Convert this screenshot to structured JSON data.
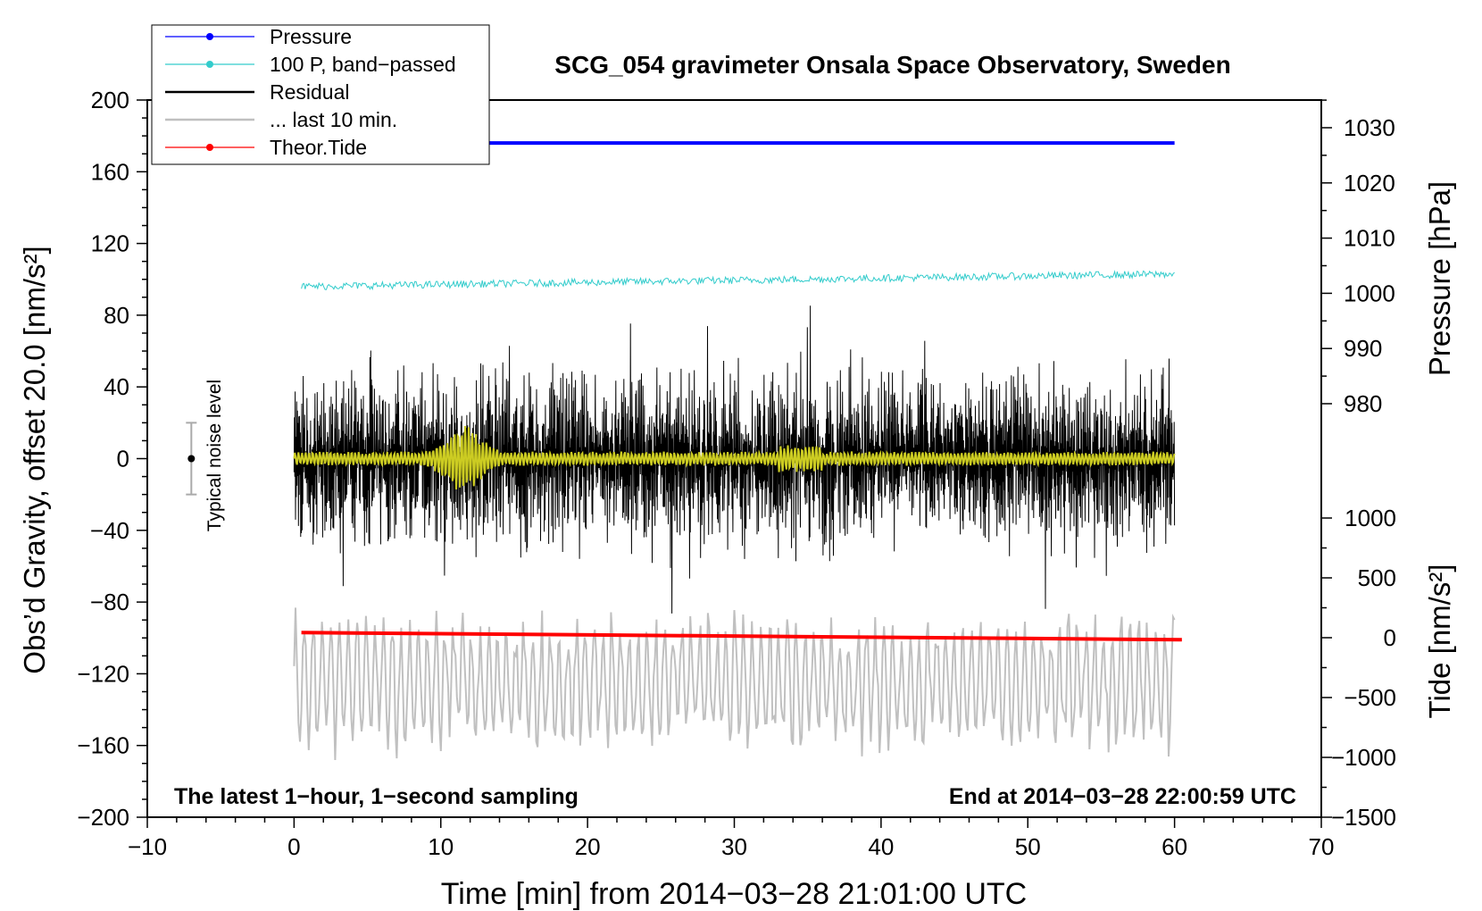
{
  "chart_data": {
    "type": "line",
    "title": "SCG_054 gravimeter Onsala Space Observatory, Sweden",
    "xlabel": "Time [min] from 2014−03−28 21:01:00 UTC",
    "ylabel_left": "Obs’d Gravity, offset 20.0 [nm/s²]",
    "ylabel_right_pressure": "Pressure [hPa]",
    "ylabel_right_tide": "Tide [nm/s²]",
    "xlim": [
      -10,
      70
    ],
    "ylim": [
      -200,
      200
    ],
    "x_ticks": [
      "−10",
      "0",
      "10",
      "20",
      "30",
      "40",
      "50",
      "60",
      "70"
    ],
    "y_ticks": [
      "200",
      "160",
      "120",
      "80",
      "40",
      "0",
      "−40",
      "−80",
      "−120",
      "−160",
      "−200"
    ],
    "pressure_axis": {
      "ticks": [
        "1030",
        "1020",
        "1010",
        "1000",
        "990",
        "980"
      ],
      "values": [
        1030,
        1020,
        1010,
        1000,
        990,
        980
      ]
    },
    "tide_axis": {
      "ticks": [
        "1000",
        "500",
        "0",
        "−500",
        "−1000",
        "−1500"
      ],
      "values": [
        1000,
        500,
        0,
        -500,
        -1000,
        -1500
      ]
    },
    "legend": [
      {
        "label": "Pressure",
        "color": "#0000ff",
        "marker": true
      },
      {
        "label": "100 P, band−passed",
        "color": "#33cccc",
        "marker": true
      },
      {
        "label": "Residual",
        "color": "#000000",
        "marker": false
      },
      {
        "label": "... last 10 min.",
        "color": "#c0c0c0",
        "marker": false
      },
      {
        "label": "Theor.Tide",
        "color": "#ff0000",
        "marker": true
      }
    ],
    "annotations": {
      "noise": "Typical noise level",
      "bottom_left": "The latest 1−hour, 1−second sampling",
      "bottom_right": "End at 2014−03−28 22:00:59 UTC"
    },
    "noise_bar": {
      "x": -7,
      "y": 0,
      "ylow": -20,
      "yhigh": 20
    },
    "series": [
      {
        "name": "Pressure",
        "color": "#0000ff",
        "y_level": 176,
        "x_range": [
          0.3,
          60
        ]
      },
      {
        "name": "100 P, band−passed",
        "color": "#33cccc",
        "y_start": 96,
        "y_end": 103,
        "x_range": [
          0.5,
          60
        ]
      },
      {
        "name": "Residual",
        "color": "#000000",
        "envelope": 45,
        "x_range": [
          0,
          60
        ]
      },
      {
        "name": "Residual (smoothed)",
        "color": "#cccc22",
        "envelope": 4,
        "x_range": [
          0,
          60
        ]
      },
      {
        "name": "... last 10 min.",
        "color": "#c0c0c0",
        "y_center": -125,
        "amplitude": 35,
        "x_range": [
          0,
          60
        ]
      },
      {
        "name": "Theor.Tide",
        "color": "#ff0000",
        "x": [
          0.5,
          60.5
        ],
        "y": [
          -97,
          -101
        ]
      }
    ]
  }
}
